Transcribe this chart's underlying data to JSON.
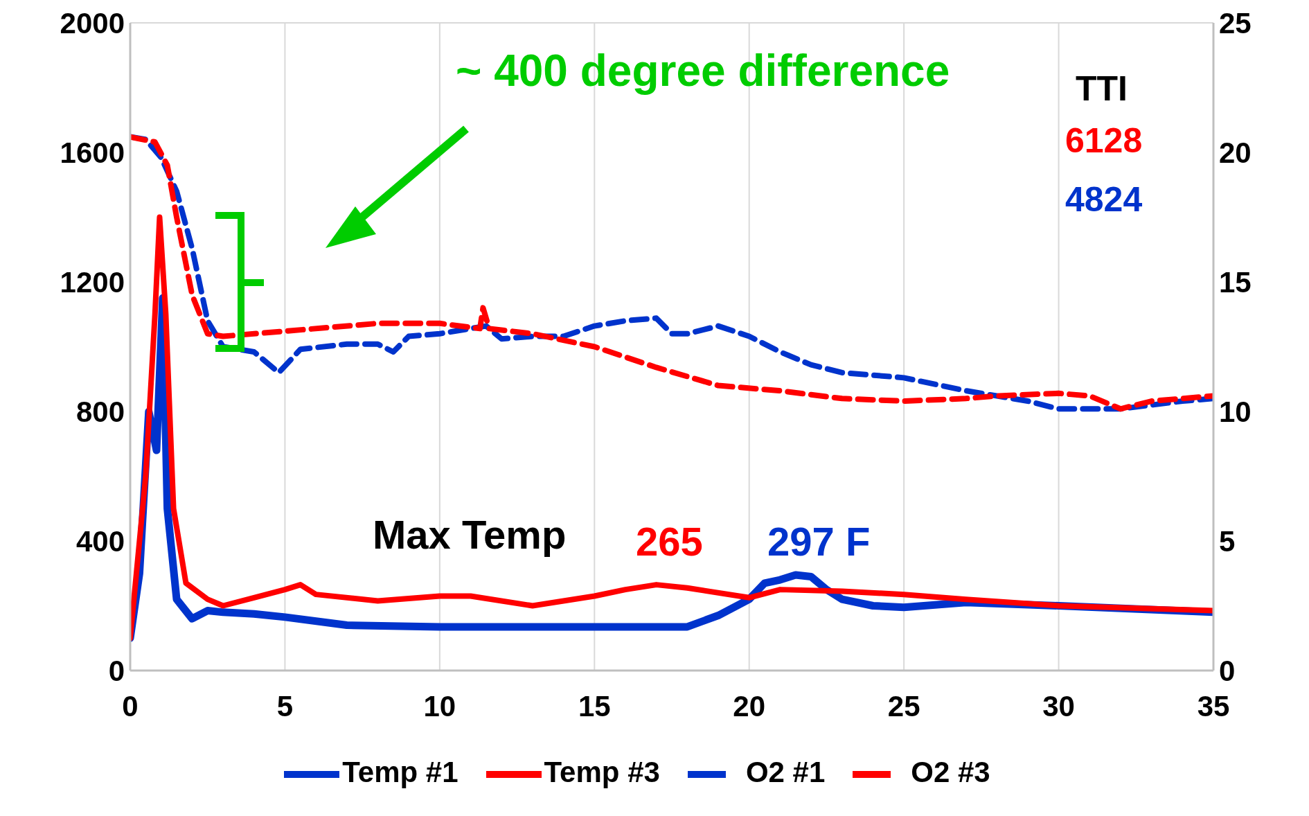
{
  "chart_data": {
    "type": "line",
    "xlim": [
      0,
      35
    ],
    "xticks": [
      0,
      5,
      10,
      15,
      20,
      25,
      30,
      35
    ],
    "ylim": [
      0,
      2000
    ],
    "yticks": [
      0,
      400,
      800,
      1200,
      1600,
      2000
    ],
    "y2lim": [
      0,
      25
    ],
    "y2ticks": [
      0,
      5,
      10,
      15,
      20,
      25
    ],
    "grid": true,
    "legend": "bottom",
    "marker": "none",
    "annotations": [
      "~ 400 degree difference",
      "TTI",
      "6128",
      "4824",
      "Max Temp",
      "265",
      "297 F"
    ],
    "series": [
      {
        "name": "Temp #1",
        "color": "#0033cc",
        "line_style": "solid",
        "x": [
          0,
          0.3,
          0.6,
          0.85,
          1.05,
          1.2,
          1.5,
          2,
          2.5,
          3,
          4,
          5,
          7,
          10,
          15,
          18,
          19,
          20,
          20.5,
          21,
          21.5,
          22,
          22.5,
          23,
          24,
          25,
          27,
          30,
          35
        ],
        "values": [
          100,
          300,
          800,
          680,
          1150,
          500,
          220,
          160,
          185,
          180,
          175,
          165,
          140,
          135,
          135,
          135,
          170,
          220,
          270,
          280,
          295,
          290,
          250,
          220,
          200,
          195,
          210,
          200,
          180
        ]
      },
      {
        "name": "Temp #3",
        "color": "#ff0000",
        "line_style": "solid",
        "x": [
          0,
          0.5,
          0.8,
          0.95,
          1.15,
          1.4,
          1.8,
          2.5,
          3,
          4,
          5,
          5.5,
          6,
          8,
          10,
          11,
          13,
          15,
          16,
          17,
          18,
          20,
          21,
          23,
          25,
          27,
          30,
          35
        ],
        "values": [
          100,
          600,
          1100,
          1400,
          1100,
          500,
          270,
          220,
          200,
          225,
          250,
          265,
          235,
          215,
          230,
          230,
          200,
          230,
          250,
          265,
          255,
          225,
          250,
          245,
          235,
          220,
          200,
          185
        ]
      },
      {
        "name": "O2 #1",
        "color": "#0033cc",
        "line_style": "dashed",
        "axis": "y2",
        "x": [
          0,
          0.5,
          1,
          1.5,
          2,
          2.5,
          3,
          4,
          4.8,
          5.5,
          7,
          8,
          8.5,
          9,
          10,
          11.5,
          12,
          13,
          14,
          15,
          16,
          17,
          17.5,
          18,
          19,
          20,
          21,
          22,
          23,
          25,
          27,
          29,
          30,
          32,
          34,
          35
        ],
        "values": [
          20.6,
          20.5,
          19.8,
          18.5,
          16.3,
          13.5,
          12.5,
          12.3,
          11.5,
          12.4,
          12.6,
          12.6,
          12.3,
          12.9,
          13,
          13.3,
          12.8,
          12.9,
          12.9,
          13.3,
          13.5,
          13.6,
          13,
          13,
          13.3,
          12.9,
          12.3,
          11.8,
          11.5,
          11.3,
          10.8,
          10.4,
          10.1,
          10.1,
          10.4,
          10.5
        ]
      },
      {
        "name": "O2 #3",
        "color": "#ff0000",
        "line_style": "dashed",
        "axis": "y2",
        "x": [
          0,
          0.8,
          1.2,
          1.5,
          2,
          2.5,
          3,
          5,
          8,
          10,
          11.3,
          11.4,
          11.6,
          13,
          15,
          17,
          19,
          21,
          23,
          25,
          27,
          28,
          30,
          31,
          32,
          33,
          34,
          35
        ],
        "values": [
          20.6,
          20.4,
          19.5,
          17.5,
          14.5,
          13,
          12.9,
          13.1,
          13.4,
          13.4,
          13.2,
          14,
          13.2,
          13,
          12.5,
          11.7,
          11,
          10.8,
          10.5,
          10.4,
          10.5,
          10.6,
          10.7,
          10.6,
          10.1,
          10.4,
          10.5,
          10.6
        ]
      }
    ]
  }
}
